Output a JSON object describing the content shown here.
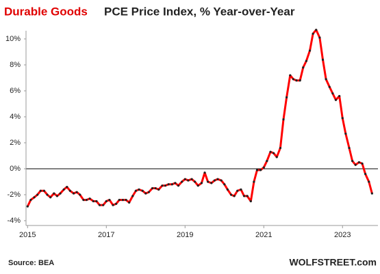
{
  "chart_data": {
    "type": "line",
    "title": "Durable Goods",
    "title_rest": "PCE Price Index, % Year-over-Year",
    "source": "Source: BEA",
    "credit": "WOLFSTREET.com",
    "x": [
      2015.0,
      2015.08,
      2015.17,
      2015.25,
      2015.33,
      2015.42,
      2015.5,
      2015.58,
      2015.67,
      2015.75,
      2015.83,
      2015.92,
      2016.0,
      2016.08,
      2016.17,
      2016.25,
      2016.33,
      2016.42,
      2016.5,
      2016.58,
      2016.67,
      2016.75,
      2016.83,
      2016.92,
      2017.0,
      2017.08,
      2017.17,
      2017.25,
      2017.33,
      2017.42,
      2017.5,
      2017.58,
      2017.67,
      2017.75,
      2017.83,
      2017.92,
      2018.0,
      2018.08,
      2018.17,
      2018.25,
      2018.33,
      2018.42,
      2018.5,
      2018.58,
      2018.67,
      2018.75,
      2018.83,
      2018.92,
      2019.0,
      2019.08,
      2019.17,
      2019.25,
      2019.33,
      2019.42,
      2019.5,
      2019.58,
      2019.67,
      2019.75,
      2019.83,
      2019.92,
      2020.0,
      2020.08,
      2020.17,
      2020.25,
      2020.33,
      2020.42,
      2020.5,
      2020.58,
      2020.67,
      2020.75,
      2020.83,
      2020.92,
      2021.0,
      2021.08,
      2021.17,
      2021.25,
      2021.33,
      2021.42,
      2021.5,
      2021.58,
      2021.67,
      2021.75,
      2021.83,
      2021.92,
      2022.0,
      2022.08,
      2022.17,
      2022.25,
      2022.33,
      2022.42,
      2022.5,
      2022.58,
      2022.67,
      2022.75,
      2022.83,
      2022.92,
      2023.0,
      2023.08,
      2023.17,
      2023.25,
      2023.33,
      2023.42,
      2023.5,
      2023.58,
      2023.67,
      2023.75
    ],
    "series": [
      {
        "name": "Durable Goods PCE Price Index",
        "color": "#ff0000",
        "marker_color": "#222222",
        "values": [
          -2.9,
          -2.4,
          -2.2,
          -2.0,
          -1.7,
          -1.7,
          -2.0,
          -2.2,
          -1.9,
          -2.1,
          -1.9,
          -1.6,
          -1.4,
          -1.7,
          -1.9,
          -1.8,
          -2.0,
          -2.4,
          -2.4,
          -2.3,
          -2.5,
          -2.5,
          -2.8,
          -2.8,
          -2.5,
          -2.4,
          -2.8,
          -2.7,
          -2.4,
          -2.4,
          -2.4,
          -2.6,
          -2.1,
          -1.7,
          -1.6,
          -1.7,
          -1.9,
          -1.8,
          -1.5,
          -1.5,
          -1.6,
          -1.3,
          -1.3,
          -1.2,
          -1.2,
          -1.1,
          -1.3,
          -1.0,
          -0.8,
          -0.9,
          -0.8,
          -1.0,
          -1.3,
          -1.1,
          -0.3,
          -1.0,
          -1.1,
          -0.9,
          -0.8,
          -0.9,
          -1.2,
          -1.6,
          -2.0,
          -2.1,
          -1.7,
          -1.6,
          -2.1,
          -2.1,
          -2.5,
          -1.0,
          -0.1,
          -0.1,
          0.1,
          0.6,
          1.3,
          1.2,
          0.9,
          1.6,
          3.8,
          5.5,
          7.2,
          6.9,
          6.8,
          6.8,
          7.8,
          8.3,
          9.1,
          10.4,
          10.7,
          10.1,
          8.4,
          6.9,
          6.3,
          5.8,
          5.3,
          5.6,
          3.9,
          2.7,
          1.6,
          0.6,
          0.3,
          0.5,
          0.4,
          -0.4,
          -1.0,
          -1.9
        ]
      }
    ],
    "xlim": [
      2014.96,
      2023.9
    ],
    "xticks": [
      2015,
      2017,
      2019,
      2021,
      2023
    ],
    "ylim": [
      -4.37,
      10.63
    ],
    "yticks": [
      {
        "value": -4,
        "label": "-4%"
      },
      {
        "value": -2,
        "label": "-2%"
      },
      {
        "value": 0,
        "label": "0%"
      },
      {
        "value": 2,
        "label": "2%"
      },
      {
        "value": 4,
        "label": "4%"
      },
      {
        "value": 6,
        "label": "6%"
      },
      {
        "value": 8,
        "label": "8%"
      },
      {
        "value": 10,
        "label": "10%"
      }
    ],
    "zero_line": true
  }
}
